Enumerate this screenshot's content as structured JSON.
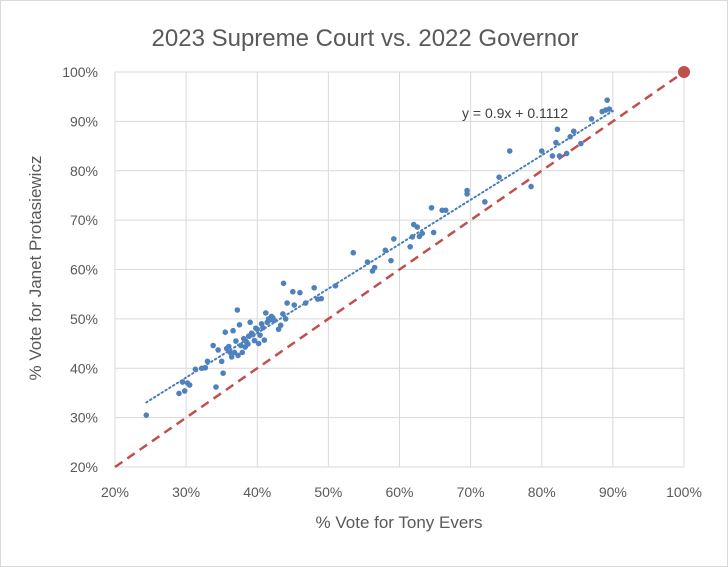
{
  "chart_data": {
    "type": "scatter",
    "title": "2023 Supreme Court vs. 2022 Governor",
    "xlabel": "% Vote for Tony Evers",
    "ylabel": "% Vote for Janet Protasiewicz",
    "xlim": [
      0.2,
      1.0
    ],
    "ylim": [
      0.2,
      1.0
    ],
    "x_ticks": [
      "20%",
      "30%",
      "40%",
      "50%",
      "60%",
      "70%",
      "80%",
      "90%",
      "100%"
    ],
    "y_ticks": [
      "20%",
      "30%",
      "40%",
      "50%",
      "60%",
      "70%",
      "80%",
      "90%",
      "100%"
    ],
    "grid": true,
    "trendline": {
      "slope": 0.9,
      "intercept": 0.1112,
      "label": "y = 0.9x + 0.1112",
      "style": "dotted",
      "color": "#4a7ebb"
    },
    "reference_line": {
      "from": [
        0.2,
        0.2
      ],
      "to": [
        1.0,
        1.0
      ],
      "style": "dashed",
      "color": "#c0504d"
    },
    "highlight_point": {
      "x": 1.0,
      "y": 1.0,
      "color": "#c0504d"
    },
    "point_color": "#4f81bd",
    "points": [
      [
        0.244,
        0.305
      ],
      [
        0.29,
        0.349
      ],
      [
        0.295,
        0.372
      ],
      [
        0.298,
        0.354
      ],
      [
        0.302,
        0.37
      ],
      [
        0.305,
        0.366
      ],
      [
        0.313,
        0.398
      ],
      [
        0.322,
        0.4
      ],
      [
        0.327,
        0.401
      ],
      [
        0.33,
        0.414
      ],
      [
        0.338,
        0.446
      ],
      [
        0.342,
        0.362
      ],
      [
        0.345,
        0.437
      ],
      [
        0.35,
        0.414
      ],
      [
        0.352,
        0.39
      ],
      [
        0.355,
        0.473
      ],
      [
        0.357,
        0.44
      ],
      [
        0.36,
        0.444
      ],
      [
        0.362,
        0.432
      ],
      [
        0.364,
        0.423
      ],
      [
        0.366,
        0.476
      ],
      [
        0.368,
        0.432
      ],
      [
        0.37,
        0.455
      ],
      [
        0.372,
        0.518
      ],
      [
        0.373,
        0.426
      ],
      [
        0.375,
        0.488
      ],
      [
        0.377,
        0.446
      ],
      [
        0.379,
        0.432
      ],
      [
        0.381,
        0.46
      ],
      [
        0.383,
        0.443
      ],
      [
        0.385,
        0.453
      ],
      [
        0.387,
        0.449
      ],
      [
        0.388,
        0.465
      ],
      [
        0.39,
        0.493
      ],
      [
        0.392,
        0.471
      ],
      [
        0.394,
        0.468
      ],
      [
        0.396,
        0.456
      ],
      [
        0.398,
        0.481
      ],
      [
        0.4,
        0.479
      ],
      [
        0.402,
        0.45
      ],
      [
        0.404,
        0.467
      ],
      [
        0.406,
        0.49
      ],
      [
        0.408,
        0.482
      ],
      [
        0.41,
        0.457
      ],
      [
        0.412,
        0.512
      ],
      [
        0.414,
        0.493
      ],
      [
        0.416,
        0.5
      ],
      [
        0.418,
        0.498
      ],
      [
        0.42,
        0.505
      ],
      [
        0.422,
        0.502
      ],
      [
        0.424,
        0.497
      ],
      [
        0.43,
        0.479
      ],
      [
        0.433,
        0.487
      ],
      [
        0.436,
        0.51
      ],
      [
        0.437,
        0.572
      ],
      [
        0.44,
        0.5
      ],
      [
        0.442,
        0.532
      ],
      [
        0.45,
        0.555
      ],
      [
        0.452,
        0.528
      ],
      [
        0.46,
        0.553
      ],
      [
        0.468,
        0.532
      ],
      [
        0.48,
        0.563
      ],
      [
        0.485,
        0.54
      ],
      [
        0.49,
        0.541
      ],
      [
        0.51,
        0.567
      ],
      [
        0.535,
        0.634
      ],
      [
        0.555,
        0.615
      ],
      [
        0.562,
        0.597
      ],
      [
        0.565,
        0.604
      ],
      [
        0.58,
        0.639
      ],
      [
        0.588,
        0.618
      ],
      [
        0.592,
        0.662
      ],
      [
        0.615,
        0.646
      ],
      [
        0.618,
        0.666
      ],
      [
        0.62,
        0.691
      ],
      [
        0.625,
        0.686
      ],
      [
        0.628,
        0.667
      ],
      [
        0.632,
        0.673
      ],
      [
        0.645,
        0.725
      ],
      [
        0.648,
        0.675
      ],
      [
        0.66,
        0.72
      ],
      [
        0.665,
        0.72
      ],
      [
        0.695,
        0.753
      ],
      [
        0.695,
        0.76
      ],
      [
        0.72,
        0.737
      ],
      [
        0.74,
        0.787
      ],
      [
        0.755,
        0.84
      ],
      [
        0.785,
        0.768
      ],
      [
        0.8,
        0.84
      ],
      [
        0.815,
        0.83
      ],
      [
        0.82,
        0.857
      ],
      [
        0.822,
        0.884
      ],
      [
        0.825,
        0.83
      ],
      [
        0.835,
        0.835
      ],
      [
        0.84,
        0.869
      ],
      [
        0.845,
        0.88
      ],
      [
        0.855,
        0.855
      ],
      [
        0.87,
        0.905
      ],
      [
        0.885,
        0.92
      ],
      [
        0.89,
        0.923
      ],
      [
        0.892,
        0.943
      ],
      [
        0.895,
        0.925
      ]
    ]
  }
}
